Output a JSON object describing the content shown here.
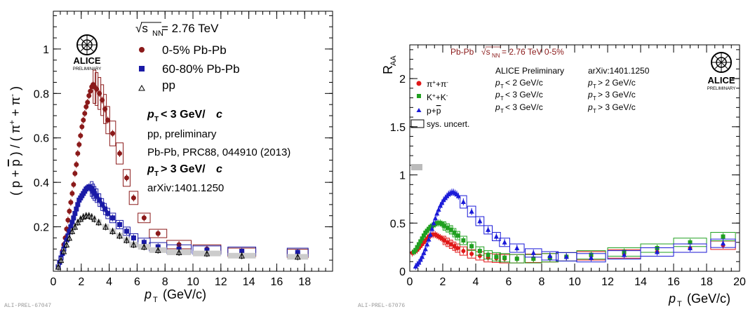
{
  "chart_data": [
    {
      "type": "scatter",
      "title": "",
      "xlabel_main": "p",
      "xlabel_sub": "T",
      "xlabel_unit": "(GeV/c)",
      "ylabel": "( p + p̄ ) / ( π⁺ + π⁻ )",
      "xlim": [
        0,
        20
      ],
      "ylim": [
        0,
        1.17
      ],
      "xticks": [
        0,
        2,
        4,
        6,
        8,
        10,
        12,
        14,
        16,
        18
      ],
      "yticks": [
        0.2,
        0.4,
        0.6,
        0.8,
        1
      ],
      "ytick_labels": [
        "0.2",
        "0.4",
        "0.6",
        "0.8",
        "1"
      ],
      "energy": "√s",
      "energy_sub": "NN",
      "energy_value": " = 2.76 TeV",
      "logo_text": "ALICE",
      "logo_sub": "PRELIMINARY",
      "annotations": [
        "p",
        "T",
        " < 3 GeV/",
        "c",
        "pp, preliminary",
        "Pb-Pb,  PRC88, 044910 (2013)",
        "p",
        "T",
        " > 3 GeV/",
        "c",
        "arXiv:1401.1250"
      ],
      "series": [
        {
          "name": "0-5% Pb-Pb",
          "color": "#8b1a1a",
          "marker": "circle",
          "x": [
            0.35,
            0.45,
            0.55,
            0.65,
            0.75,
            0.85,
            0.95,
            1.05,
            1.15,
            1.25,
            1.35,
            1.45,
            1.55,
            1.65,
            1.75,
            1.85,
            1.95,
            2.05,
            2.15,
            2.25,
            2.35,
            2.45,
            2.55,
            2.65,
            2.75,
            2.85,
            2.95,
            3.1,
            3.3,
            3.5,
            3.7,
            3.9,
            4.25,
            4.75,
            5.25,
            5.75,
            6.5,
            7.5,
            9.0,
            11.0,
            13.5,
            17.5
          ],
          "y": [
            0.02,
            0.04,
            0.06,
            0.09,
            0.12,
            0.15,
            0.19,
            0.23,
            0.27,
            0.31,
            0.35,
            0.39,
            0.44,
            0.48,
            0.53,
            0.57,
            0.61,
            0.65,
            0.68,
            0.71,
            0.74,
            0.76,
            0.79,
            0.81,
            0.83,
            0.84,
            0.83,
            0.82,
            0.8,
            0.77,
            0.73,
            0.68,
            0.62,
            0.53,
            0.42,
            0.33,
            0.24,
            0.17,
            0.12,
            0.1,
            0.085,
            0.08
          ],
          "box_from_index": 26
        },
        {
          "name": "60-80% Pb-Pb",
          "color": "#1a1aa6",
          "marker": "square",
          "x": [
            0.35,
            0.45,
            0.55,
            0.65,
            0.75,
            0.85,
            0.95,
            1.05,
            1.15,
            1.25,
            1.35,
            1.45,
            1.55,
            1.65,
            1.75,
            1.85,
            1.95,
            2.05,
            2.15,
            2.25,
            2.35,
            2.45,
            2.55,
            2.65,
            2.75,
            2.85,
            2.95,
            3.1,
            3.3,
            3.5,
            3.7,
            3.9,
            4.25,
            4.75,
            5.25,
            5.75,
            6.5,
            7.5,
            9.0,
            11.0,
            13.5,
            17.5
          ],
          "y": [
            0.02,
            0.04,
            0.06,
            0.08,
            0.1,
            0.12,
            0.14,
            0.16,
            0.18,
            0.2,
            0.22,
            0.24,
            0.26,
            0.28,
            0.3,
            0.32,
            0.33,
            0.34,
            0.35,
            0.36,
            0.37,
            0.375,
            0.38,
            0.375,
            0.37,
            0.36,
            0.35,
            0.34,
            0.32,
            0.3,
            0.28,
            0.26,
            0.24,
            0.21,
            0.18,
            0.15,
            0.13,
            0.11,
            0.1,
            0.095,
            0.09,
            0.085
          ],
          "box_from_index": 24
        },
        {
          "name": "pp",
          "color": "#000000",
          "marker": "triangle-open",
          "x": [
            0.35,
            0.55,
            0.75,
            0.95,
            1.15,
            1.35,
            1.55,
            1.75,
            1.95,
            2.15,
            2.35,
            2.55,
            2.75,
            2.95,
            3.25,
            3.75,
            4.25,
            4.75,
            5.25,
            5.75,
            6.5,
            7.5,
            9.0,
            11.0,
            13.5,
            17.5
          ],
          "y": [
            0.02,
            0.05,
            0.09,
            0.12,
            0.15,
            0.18,
            0.2,
            0.22,
            0.235,
            0.245,
            0.25,
            0.25,
            0.245,
            0.235,
            0.22,
            0.2,
            0.18,
            0.16,
            0.14,
            0.12,
            0.11,
            0.095,
            0.085,
            0.08,
            0.07,
            0.065
          ],
          "box_from_index": 99
        }
      ],
      "legend_position": "top-left"
    },
    {
      "type": "scatter",
      "title": "",
      "ylabel": "R",
      "ylabel_sub": "AA",
      "xlabel_main": "p",
      "xlabel_sub": "T",
      "xlabel_unit": "(GeV/c)",
      "xlim": [
        0,
        20
      ],
      "ylim": [
        0,
        2.35
      ],
      "xticks": [
        0,
        2,
        4,
        6,
        8,
        10,
        12,
        14,
        16,
        18,
        20
      ],
      "yticks": [
        0,
        0.5,
        1,
        1.5,
        2
      ],
      "ytick_labels": [
        "0",
        "0.5",
        "1",
        "1.5",
        "2"
      ],
      "header_left": "Pb-Pb",
      "header_energy": "√s",
      "header_energy_sub": "NN",
      "header_energy_value": " = 2.76 TeV 0-5%",
      "logo_text": "ALICE",
      "logo_sub": "PRELIMINARY",
      "info_left": "ALICE Preliminary",
      "info_right": "arXiv:1401.1250",
      "sys_label": "sys. uncert.",
      "cut_rows": [
        {
          "left": " < 2 GeV/c",
          "right": " > 2 GeV/c"
        },
        {
          "left": " < 3 GeV/c",
          "right": " > 3 GeV/c"
        },
        {
          "left": " < 3 GeV/c",
          "right": " > 3 GeV/c"
        }
      ],
      "series": [
        {
          "name": "π⁺+π⁻",
          "color": "#e01818",
          "marker": "circle",
          "x": [
            0.15,
            0.25,
            0.35,
            0.45,
            0.55,
            0.65,
            0.75,
            0.85,
            0.95,
            1.05,
            1.15,
            1.25,
            1.35,
            1.45,
            1.55,
            1.65,
            1.75,
            1.85,
            1.95,
            2.1,
            2.3,
            2.5,
            2.7,
            2.9,
            3.25,
            3.75,
            4.25,
            4.75,
            5.25,
            5.75,
            6.5,
            7.5,
            8.5,
            9.5,
            11,
            13,
            15,
            17,
            19
          ],
          "y": [
            0.19,
            0.2,
            0.21,
            0.22,
            0.24,
            0.26,
            0.28,
            0.3,
            0.32,
            0.34,
            0.36,
            0.37,
            0.38,
            0.38,
            0.38,
            0.37,
            0.36,
            0.35,
            0.34,
            0.32,
            0.3,
            0.28,
            0.26,
            0.24,
            0.21,
            0.18,
            0.16,
            0.14,
            0.135,
            0.13,
            0.13,
            0.135,
            0.14,
            0.15,
            0.16,
            0.18,
            0.2,
            0.24,
            0.27
          ],
          "box_from_index": 19
        },
        {
          "name": "K⁺+K⁻",
          "color": "#20a020",
          "marker": "square",
          "x": [
            0.25,
            0.35,
            0.45,
            0.55,
            0.65,
            0.75,
            0.85,
            0.95,
            1.05,
            1.15,
            1.25,
            1.35,
            1.45,
            1.55,
            1.65,
            1.75,
            1.85,
            1.95,
            2.1,
            2.3,
            2.5,
            2.7,
            2.9,
            3.25,
            3.75,
            4.25,
            4.75,
            5.25,
            5.75,
            6.5,
            7.5,
            8.5,
            9.5,
            11,
            13,
            15,
            17,
            19
          ],
          "y": [
            0.2,
            0.22,
            0.25,
            0.28,
            0.31,
            0.34,
            0.37,
            0.4,
            0.42,
            0.44,
            0.46,
            0.47,
            0.48,
            0.49,
            0.5,
            0.5,
            0.5,
            0.49,
            0.47,
            0.45,
            0.43,
            0.4,
            0.37,
            0.32,
            0.26,
            0.21,
            0.17,
            0.15,
            0.14,
            0.13,
            0.13,
            0.14,
            0.15,
            0.17,
            0.2,
            0.24,
            0.3,
            0.36
          ],
          "box_from_index": 18
        },
        {
          "name": "p+p̄",
          "color": "#1a1ad8",
          "marker": "triangle",
          "x": [
            0.35,
            0.45,
            0.55,
            0.65,
            0.75,
            0.85,
            0.95,
            1.05,
            1.15,
            1.25,
            1.35,
            1.45,
            1.55,
            1.65,
            1.75,
            1.85,
            1.95,
            2.05,
            2.15,
            2.25,
            2.35,
            2.45,
            2.55,
            2.65,
            2.75,
            2.85,
            2.95,
            3.25,
            3.75,
            4.25,
            4.75,
            5.25,
            5.75,
            6.5,
            7.5,
            8.5,
            9.5,
            11,
            13,
            15,
            17,
            19
          ],
          "y": [
            0.05,
            0.07,
            0.09,
            0.12,
            0.15,
            0.19,
            0.23,
            0.28,
            0.33,
            0.38,
            0.44,
            0.5,
            0.55,
            0.6,
            0.64,
            0.68,
            0.71,
            0.74,
            0.76,
            0.78,
            0.8,
            0.81,
            0.82,
            0.82,
            0.81,
            0.8,
            0.78,
            0.72,
            0.62,
            0.52,
            0.43,
            0.36,
            0.3,
            0.24,
            0.19,
            0.16,
            0.15,
            0.14,
            0.17,
            0.2,
            0.24,
            0.29
          ],
          "box_from_index": 27
        }
      ],
      "legend_position": "top-left"
    }
  ],
  "footer": {
    "left_ref": "ALI-PREL-67047",
    "right_ref": "ALI-PREL-67076"
  }
}
